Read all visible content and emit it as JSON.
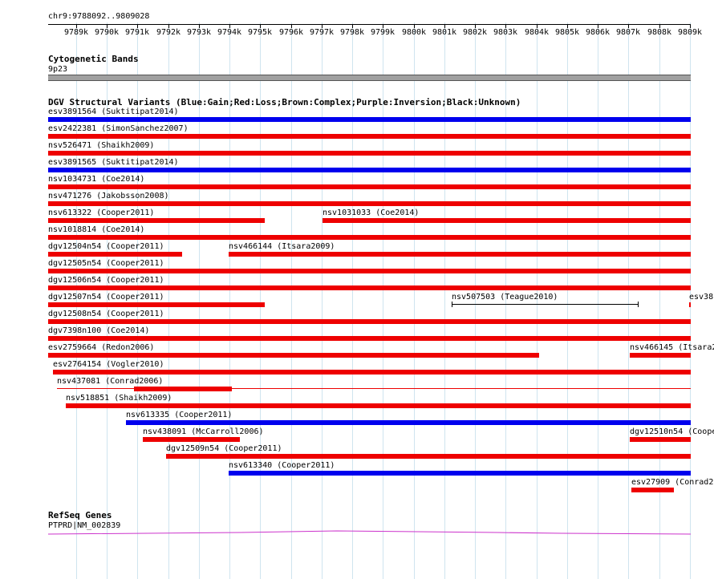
{
  "ruler": {
    "position": "chr9:9788092..9809028",
    "ticks": [
      "9789k",
      "9790k",
      "9791k",
      "9792k",
      "9793k",
      "9794k",
      "9795k",
      "9796k",
      "9797k",
      "9798k",
      "9799k",
      "9800k",
      "9801k",
      "9802k",
      "9803k",
      "9804k",
      "9805k",
      "9806k",
      "9807k",
      "9808k",
      "9809k"
    ]
  },
  "tracks": {
    "cyto": {
      "title": "Cytogenetic Bands",
      "band": "9p23",
      "band_color": "#a0a0a0"
    },
    "dgv": {
      "title": "DGV Structural Variants (Blue:Gain;Red:Loss;Brown:Complex;Purple:Inversion;Black:Unknown)",
      "colors": {
        "gain": "#0000ee",
        "loss": "#ee0000",
        "unknown": "#000000"
      },
      "features": [
        {
          "label": "esv3891564 (Suktitipat2014)",
          "type": "gain",
          "start": 9788092,
          "end": 9809028
        },
        {
          "label": "esv2422381 (SimonSanchez2007)",
          "type": "loss",
          "start": 9788092,
          "end": 9809028
        },
        {
          "label": "nsv526471 (Shaikh2009)",
          "type": "loss",
          "start": 9788092,
          "end": 9809028
        },
        {
          "label": "esv3891565 (Suktitipat2014)",
          "type": "gain",
          "start": 9788092,
          "end": 9809028
        },
        {
          "label": "nsv1034731 (Coe2014)",
          "type": "loss",
          "start": 9788092,
          "end": 9809028
        },
        {
          "label": "nsv471276 (Jakobsson2008)",
          "type": "loss",
          "start": 9788092,
          "end": 9809028
        },
        {
          "label": "nsv613322 (Cooper2011)",
          "type": "loss",
          "start": 9788092,
          "end": 9795150
        },
        {
          "label": "nsv1031033 (Coe2014)",
          "type": "loss",
          "start": 9797020,
          "end": 9809028
        },
        {
          "label": "nsv1018814 (Coe2014)",
          "type": "loss",
          "start": 9788092,
          "end": 9809028
        },
        {
          "label": "dgv12504n54 (Cooper2011)",
          "type": "loss",
          "start": 9788092,
          "end": 9792460
        },
        {
          "label": "nsv466144 (Itsara2009)",
          "type": "loss",
          "start": 9793960,
          "end": 9809028
        },
        {
          "label": "dgv12505n54 (Cooper2011)",
          "type": "loss",
          "start": 9788092,
          "end": 9809028
        },
        {
          "label": "dgv12506n54 (Cooper2011)",
          "type": "loss",
          "start": 9788092,
          "end": 9809028
        },
        {
          "label": "dgv12507n54 (Cooper2011)",
          "type": "loss",
          "start": 9788092,
          "end": 9795150
        },
        {
          "label": "nsv507503 (Teague2010)",
          "type": "unknown",
          "start": 9801250,
          "end": 9807290
        },
        {
          "label": "esv38",
          "type": "loss",
          "start": 9808980,
          "end": 9809028
        },
        {
          "label": "dgv12508n54 (Cooper2011)",
          "type": "loss",
          "start": 9788092,
          "end": 9809028
        },
        {
          "label": "dgv7398n100 (Coe2014)",
          "type": "loss",
          "start": 9788092,
          "end": 9809028
        },
        {
          "label": "esv2759664 (Redon2006)",
          "type": "loss",
          "start": 9788092,
          "end": 9804100
        },
        {
          "label": "nsv466145 (Itsara2",
          "type": "loss",
          "start": 9807030,
          "end": 9809028
        },
        {
          "label": "esv2764154 (Vogler2010)",
          "type": "loss",
          "start": 9788250,
          "end": 9809028
        },
        {
          "label": "nsv437081 (Conrad2006)",
          "type": "loss",
          "start": 9788380,
          "end": 9809028
        },
        {
          "label": "nsv518851 (Shaikh2009)",
          "type": "loss",
          "start": 9788660,
          "end": 9809028
        },
        {
          "label": "nsv613335 (Cooper2011)",
          "type": "gain",
          "start": 9790640,
          "end": 9809028
        },
        {
          "label": "nsv438091 (McCarroll2006)",
          "type": "loss",
          "start": 9791170,
          "end": 9794350
        },
        {
          "label": "dgv12510n54 (Cooper",
          "type": "loss",
          "start": 9807030,
          "end": 9809028
        },
        {
          "label": "dgv12509n54 (Cooper2011)",
          "type": "loss",
          "start": 9791930,
          "end": 9809028
        },
        {
          "label": "nsv613340 (Cooper2011)",
          "type": "gain",
          "start": 9793960,
          "end": 9809028
        },
        {
          "label": "esv27909 (Conrad20",
          "type": "loss",
          "start": 9807090,
          "end": 9808480
        }
      ]
    },
    "refseq": {
      "title": "RefSeq Genes",
      "gene": "PTPRD|NM_002839",
      "color": "#cc33cc"
    }
  }
}
